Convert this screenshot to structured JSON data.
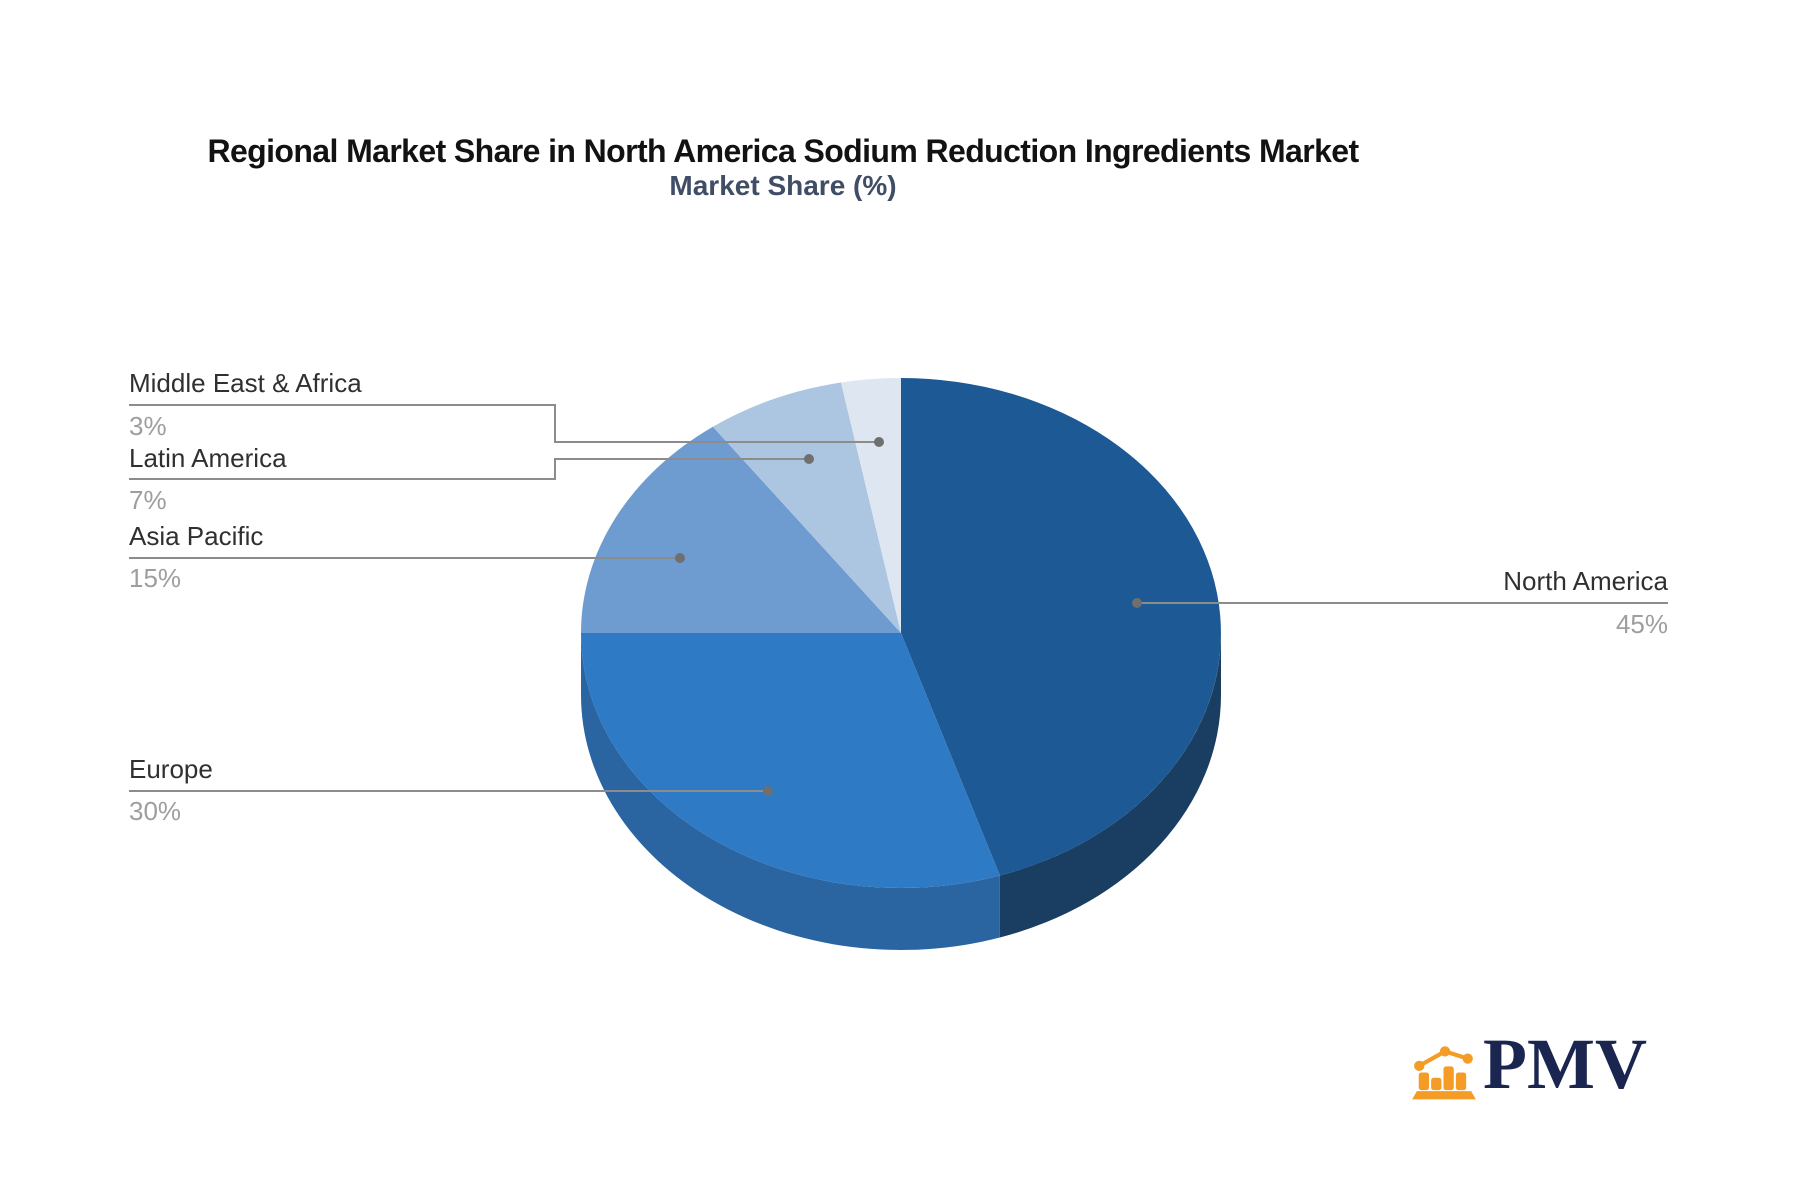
{
  "chart_data": {
    "type": "pie",
    "title": "Regional Market Share in North America Sodium Reduction Ingredients Market",
    "subtitle": "Market Share (%)",
    "unit": "%",
    "direction": "clockwise",
    "start_angle_deg": 0,
    "effect": "3d",
    "legend_position": "outside-callout-labels",
    "slices": [
      {
        "id": "north-america",
        "label": "North America",
        "value": 45,
        "pct_label": "45%",
        "color": "#1d5994",
        "side_color": "#1a3e61"
      },
      {
        "id": "europe",
        "label": "Europe",
        "value": 30,
        "pct_label": "30%",
        "color": "#2e7ac4",
        "side_color": "#2a65a2"
      },
      {
        "id": "asia-pacific",
        "label": "Asia Pacific",
        "value": 15,
        "pct_label": "15%",
        "color": "#6e9cd1",
        "side_color": "#5a86bc"
      },
      {
        "id": "latin-america",
        "label": "Latin America",
        "value": 7,
        "pct_label": "7%",
        "color": "#acc6e2",
        "side_color": "#93b2d4"
      },
      {
        "id": "middle-east-africa",
        "label": "Middle East & Africa",
        "value": 3,
        "pct_label": "3%",
        "color": "#dee6f2",
        "side_color": "#c2cfe2"
      }
    ],
    "connector_color": "#8c8c8c",
    "connector_dot_color": "#6f6f6f",
    "label_color": "#303030",
    "pct_color": "#9e9e9e"
  },
  "logo": {
    "text": "PMV",
    "icon": "bar-chart-logo-icon",
    "icon_color": "#f59c27",
    "text_color": "#1a2550"
  }
}
